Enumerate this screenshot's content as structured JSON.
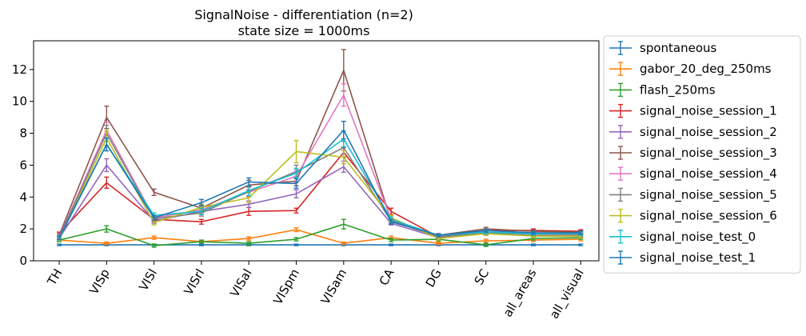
{
  "chart_data": {
    "type": "line",
    "title": "SignalNoise - differentiation (n=2)",
    "subtitle": "state size = 1000ms",
    "xlabel": "",
    "ylabel": "",
    "ylim": [
      0,
      13.8
    ],
    "yticks": [
      0,
      2,
      4,
      6,
      8,
      10,
      12
    ],
    "grid": false,
    "legend_position": "outside-right",
    "categories": [
      "TH",
      "VISp",
      "VISl",
      "VISrl",
      "VISal",
      "VISpm",
      "VISam",
      "CA",
      "DG",
      "SC",
      "all_areas",
      "all_visual"
    ],
    "series": [
      {
        "name": "spontaneous",
        "color": "#1f77b4",
        "values": [
          1.0,
          1.0,
          1.0,
          1.0,
          1.0,
          1.0,
          1.0,
          1.0,
          1.0,
          1.0,
          1.0,
          1.0
        ],
        "errors": [
          0.05,
          0.05,
          0.05,
          0.05,
          0.05,
          0.05,
          0.05,
          0.05,
          0.05,
          0.05,
          0.05,
          0.05
        ]
      },
      {
        "name": "gabor_20_deg_250ms",
        "color": "#ff7f0e",
        "values": [
          1.3,
          1.1,
          1.45,
          1.2,
          1.4,
          1.95,
          1.1,
          1.45,
          1.1,
          1.25,
          1.3,
          1.35
        ],
        "errors": [
          0.1,
          0.08,
          0.1,
          0.08,
          0.1,
          0.12,
          0.08,
          0.1,
          0.08,
          0.1,
          0.1,
          0.1
        ]
      },
      {
        "name": "flash_250ms",
        "color": "#2ca02c",
        "values": [
          1.3,
          2.0,
          0.95,
          1.2,
          1.1,
          1.35,
          2.3,
          1.3,
          1.35,
          1.0,
          1.4,
          1.45
        ],
        "errors": [
          0.1,
          0.2,
          0.1,
          0.1,
          0.1,
          0.1,
          0.3,
          0.1,
          0.1,
          0.1,
          0.1,
          0.1
        ]
      },
      {
        "name": "signal_noise_session_1",
        "color": "#d62728",
        "values": [
          1.7,
          4.9,
          2.6,
          2.45,
          3.1,
          3.15,
          6.8,
          3.1,
          1.5,
          1.9,
          1.9,
          1.85
        ],
        "errors": [
          0.1,
          0.35,
          0.15,
          0.15,
          0.25,
          0.15,
          0.3,
          0.2,
          0.1,
          0.1,
          0.1,
          0.1
        ]
      },
      {
        "name": "signal_noise_session_2",
        "color": "#9467bd",
        "values": [
          1.4,
          6.0,
          2.5,
          3.1,
          3.55,
          4.2,
          5.9,
          2.35,
          1.45,
          1.8,
          1.55,
          1.55
        ],
        "errors": [
          0.1,
          0.4,
          0.15,
          0.2,
          0.2,
          0.25,
          0.35,
          0.1,
          0.1,
          0.1,
          0.1,
          0.1
        ]
      },
      {
        "name": "signal_noise_session_3",
        "color": "#8c564b",
        "values": [
          1.6,
          9.0,
          4.3,
          3.3,
          4.75,
          5.0,
          11.95,
          2.5,
          1.6,
          2.0,
          1.85,
          1.8
        ],
        "errors": [
          0.1,
          0.7,
          0.2,
          0.2,
          0.3,
          0.3,
          1.3,
          0.15,
          0.1,
          0.1,
          0.1,
          0.1
        ]
      },
      {
        "name": "signal_noise_session_4",
        "color": "#e377c2",
        "values": [
          1.5,
          8.2,
          2.7,
          3.2,
          4.3,
          5.3,
          10.4,
          2.6,
          1.55,
          1.7,
          1.6,
          1.65
        ],
        "errors": [
          0.1,
          0.5,
          0.15,
          0.2,
          0.3,
          0.4,
          0.7,
          0.15,
          0.1,
          0.1,
          0.1,
          0.1
        ]
      },
      {
        "name": "signal_noise_session_5",
        "color": "#7f7f7f",
        "values": [
          1.45,
          8.0,
          2.65,
          3.0,
          4.35,
          5.6,
          7.1,
          2.5,
          1.5,
          1.75,
          1.6,
          1.6
        ],
        "errors": [
          0.1,
          0.5,
          0.15,
          0.2,
          0.3,
          0.4,
          0.4,
          0.15,
          0.1,
          0.1,
          0.1,
          0.1
        ]
      },
      {
        "name": "signal_noise_session_6",
        "color": "#bcbd22",
        "values": [
          1.35,
          7.7,
          2.4,
          3.35,
          3.95,
          6.85,
          6.5,
          2.7,
          1.4,
          1.7,
          1.55,
          1.55
        ],
        "errors": [
          0.1,
          0.45,
          0.15,
          0.2,
          0.3,
          0.7,
          0.4,
          0.15,
          0.1,
          0.1,
          0.1,
          0.1
        ]
      },
      {
        "name": "signal_noise_test_0",
        "color": "#17becf",
        "values": [
          1.4,
          7.3,
          2.85,
          3.1,
          4.4,
          5.5,
          7.65,
          2.6,
          1.6,
          1.8,
          1.7,
          1.7
        ],
        "errors": [
          0.1,
          0.4,
          0.15,
          0.2,
          0.3,
          0.3,
          0.5,
          0.15,
          0.1,
          0.1,
          0.1,
          0.1
        ]
      },
      {
        "name": "signal_noise_test_1",
        "color": "#1f77b4",
        "values": [
          1.45,
          7.3,
          2.7,
          3.65,
          4.95,
          4.85,
          8.2,
          2.45,
          1.6,
          1.9,
          1.75,
          1.75
        ],
        "errors": [
          0.1,
          0.4,
          0.15,
          0.2,
          0.25,
          0.3,
          0.55,
          0.15,
          0.1,
          0.1,
          0.1,
          0.1
        ]
      }
    ]
  }
}
